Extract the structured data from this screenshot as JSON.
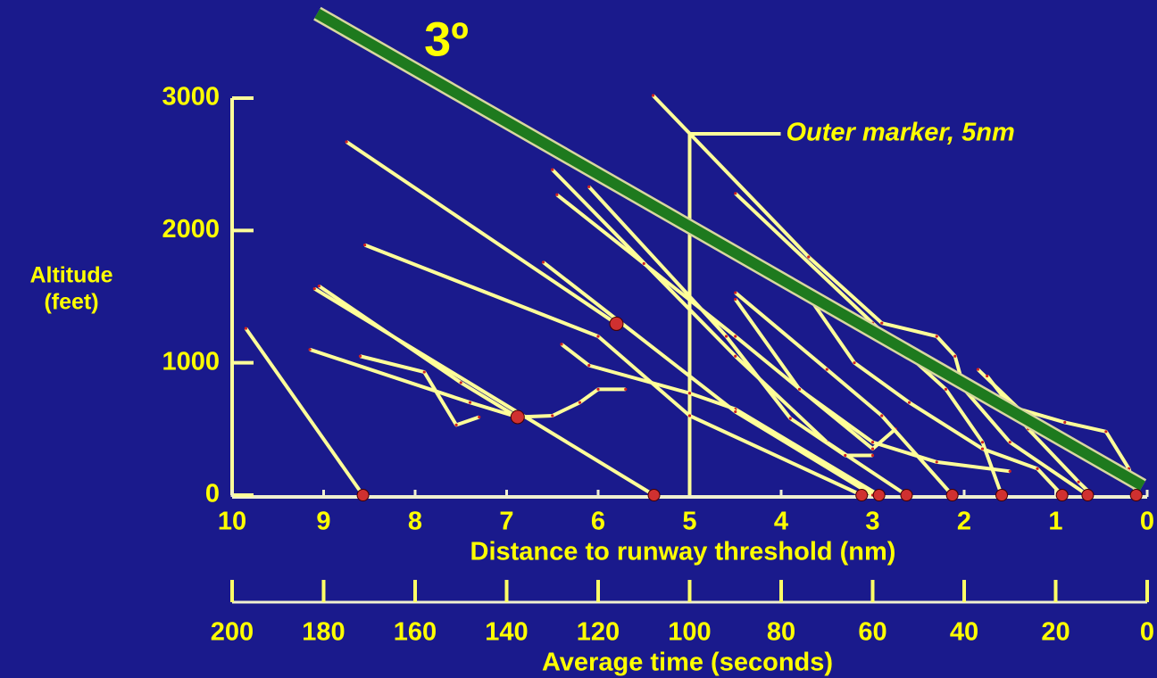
{
  "chart_data": {
    "type": "line",
    "xlabel": "Distance to runway threshold (nm)",
    "ylabel": [
      "Altitude",
      "(feet)"
    ],
    "xlim": [
      10,
      0
    ],
    "xticks": [
      10,
      9,
      8,
      7,
      6,
      5,
      4,
      3,
      2,
      1,
      0
    ],
    "ylim": [
      0,
      3000
    ],
    "yticks": [
      0,
      1000,
      2000,
      3000
    ],
    "x2label": "Average time (seconds)",
    "x2lim": [
      200,
      0
    ],
    "x2ticks": [
      200,
      180,
      160,
      140,
      120,
      100,
      80,
      60,
      40,
      20,
      0
    ],
    "line_color": "#ffff99",
    "vertex_color": "#d02020",
    "series": [
      {
        "x": [
          9.85,
          8.57
        ],
        "values": [
          1260,
          0
        ]
      },
      {
        "x": [
          9.15,
          7.4,
          6.88,
          6.5,
          6.2,
          6.0,
          5.7
        ],
        "values": [
          1100,
          700,
          590,
          600,
          700,
          800,
          800
        ]
      },
      {
        "x": [
          9.05,
          7.5,
          6.88
        ],
        "values": [
          1580,
          850,
          590
        ]
      },
      {
        "x": [
          9.1,
          5.39
        ],
        "values": [
          1560,
          0
        ]
      },
      {
        "x": [
          8.6,
          7.9,
          7.55,
          7.3
        ],
        "values": [
          1050,
          930,
          530,
          590
        ]
      },
      {
        "x": [
          8.55,
          6.0,
          5.0,
          3.12
        ],
        "values": [
          1890,
          1200,
          600,
          0
        ]
      },
      {
        "x": [
          8.75,
          5.8
        ],
        "values": [
          2670,
          1295
        ]
      },
      {
        "x": [
          6.4,
          6.1,
          5.0,
          4.5,
          2.93
        ],
        "values": [
          1140,
          980,
          770,
          650,
          0
        ]
      },
      {
        "x": [
          6.5,
          4.5,
          3.5,
          2.63
        ],
        "values": [
          2460,
          1050,
          400,
          0
        ]
      },
      {
        "x": [
          6.45,
          5.5,
          4.5,
          3.0,
          2.75
        ],
        "values": [
          2270,
          1750,
          1200,
          350,
          500
        ]
      },
      {
        "x": [
          6.1,
          4.6,
          3.9,
          3.3,
          3.0
        ],
        "values": [
          2330,
          1200,
          580,
          300,
          300
        ]
      },
      {
        "x": [
          5.4,
          3.7,
          2.9,
          2.3,
          2.1,
          2.0,
          1.5,
          0.65
        ],
        "values": [
          3020,
          1800,
          1300,
          1200,
          1050,
          800,
          400,
          0
        ]
      },
      {
        "x": [
          4.5,
          3.0,
          2.2,
          1.8,
          1.59
        ],
        "values": [
          2280,
          1300,
          800,
          400,
          0
        ]
      },
      {
        "x": [
          4.5,
          3.5,
          2.9,
          2.13
        ],
        "values": [
          1530,
          950,
          600,
          0
        ]
      },
      {
        "x": [
          4.5,
          3.8,
          3.0,
          2.3,
          1.5
        ],
        "values": [
          1480,
          800,
          400,
          250,
          180
        ]
      },
      {
        "x": [
          3.8,
          3.2,
          2.6,
          1.8,
          1.2,
          0.93
        ],
        "values": [
          1600,
          1000,
          700,
          350,
          200,
          0
        ]
      },
      {
        "x": [
          1.85,
          1.4,
          0.9,
          0.45,
          0.2,
          0.12
        ],
        "values": [
          950,
          650,
          550,
          480,
          200,
          0
        ]
      },
      {
        "x": [
          1.75,
          1.3,
          0.75,
          0.6
        ],
        "values": [
          900,
          500,
          100,
          0
        ]
      },
      {
        "x": [
          6.6,
          4.5,
          3.0
        ],
        "values": [
          1760,
          630,
          0
        ]
      }
    ],
    "points": {
      "color": "#d03030",
      "x": [
        8.57,
        6.88,
        5.39,
        5.8,
        3.12,
        2.93,
        2.63,
        2.13,
        1.59,
        0.93,
        0.65,
        0.12
      ],
      "values": [
        0,
        590,
        0,
        1295,
        0,
        0,
        0,
        0,
        0,
        0,
        0,
        0
      ]
    },
    "glide_slope": {
      "label": "3º",
      "color": "#1e7a1e",
      "x": [
        9.07,
        0.05
      ],
      "values": [
        3640,
        70
      ]
    },
    "outer_marker": {
      "label": "Outer marker, 5nm",
      "x": 5,
      "top": 2730
    }
  }
}
